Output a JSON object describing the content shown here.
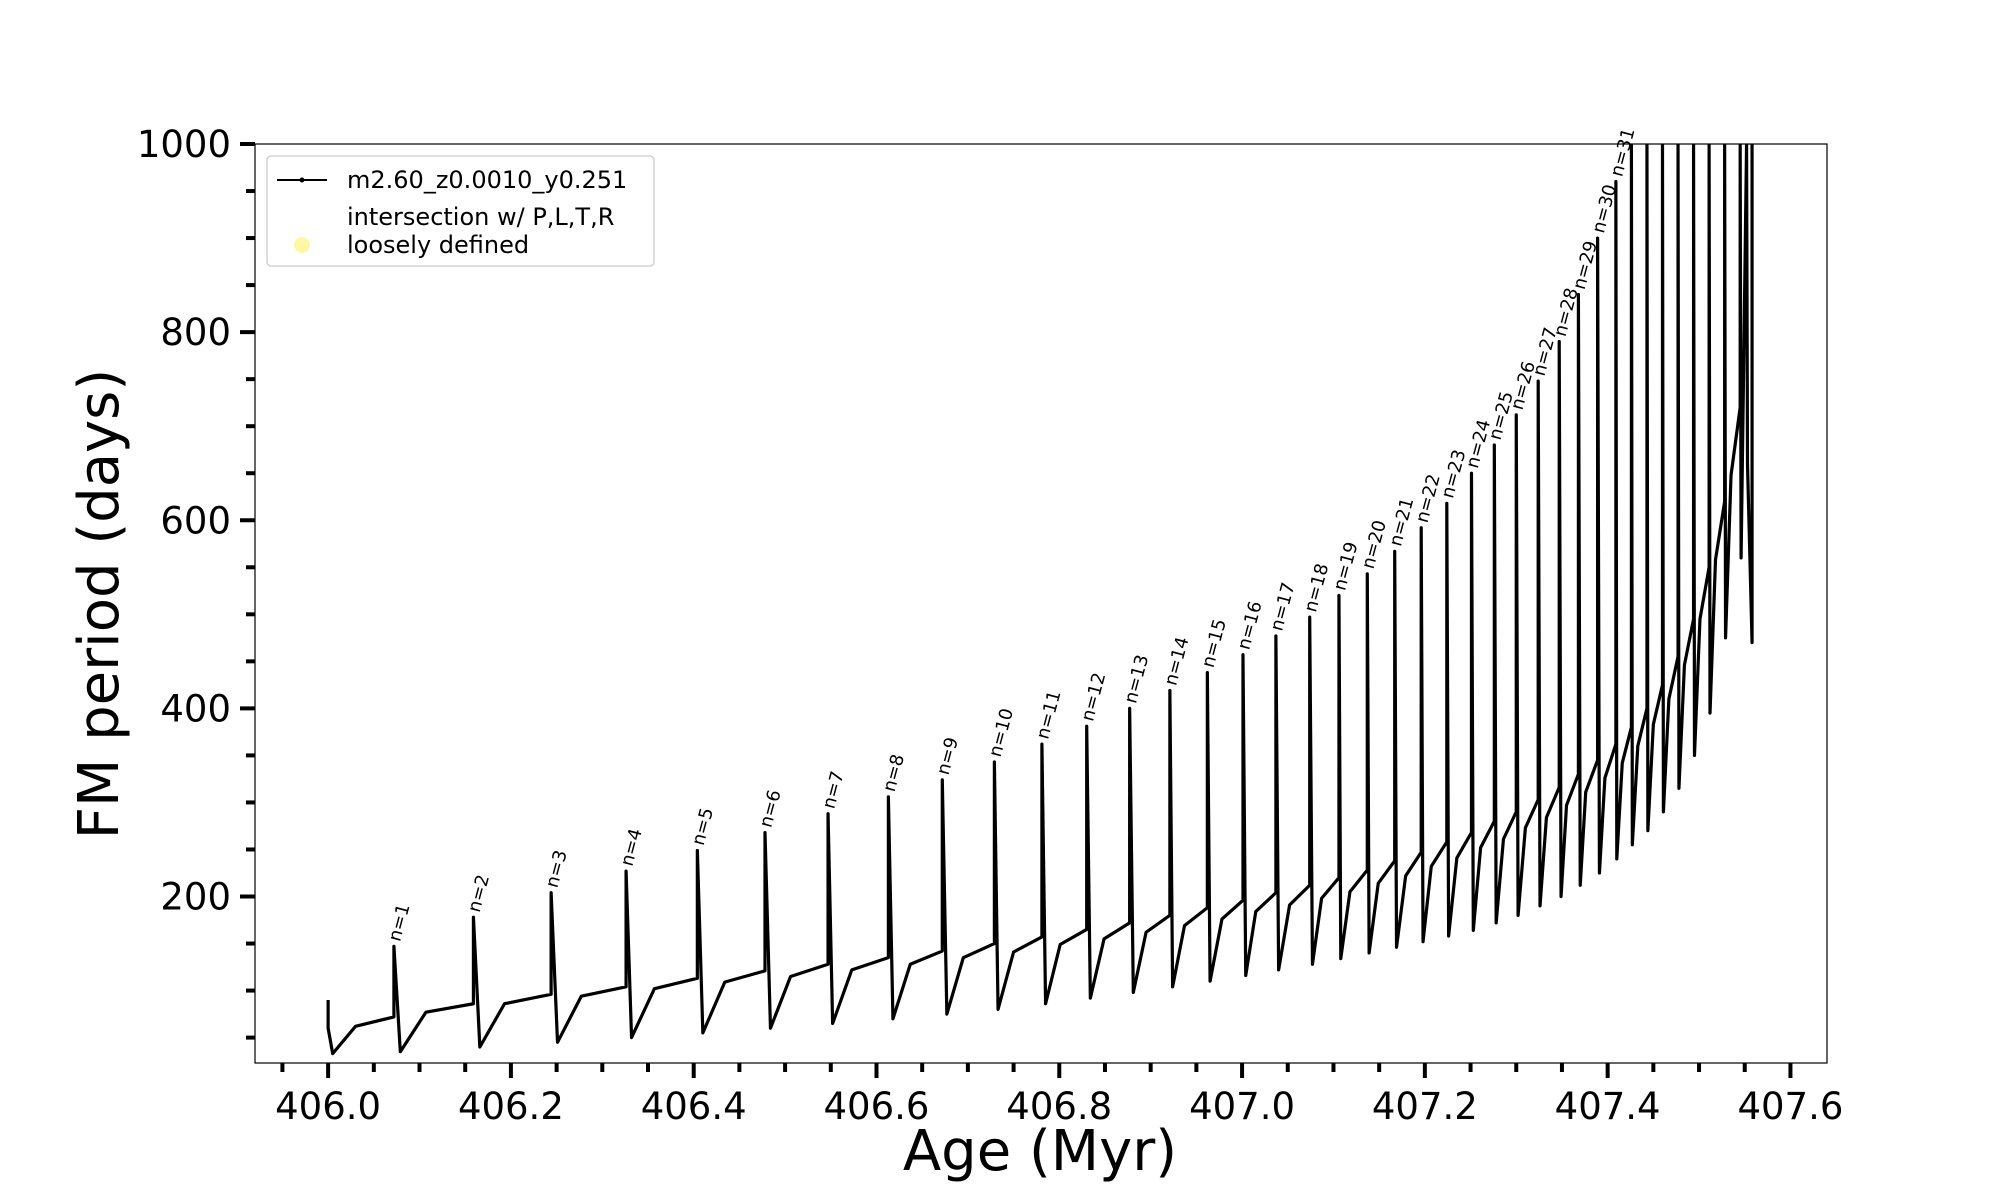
{
  "chart_data": {
    "type": "line",
    "xlabel": "Age (Myr)",
    "ylabel": "FM period (days)",
    "xlim": [
      405.92,
      407.64
    ],
    "ylim": [
      23,
      1000
    ],
    "xticks": [
      {
        "value": 406,
        "label": "406.0"
      },
      406.2,
      406.4,
      406.6,
      406.8,
      {
        "value": 407,
        "label": "407.0"
      },
      407.2,
      407.4,
      407.6
    ],
    "xticks_minor": [
      405.95,
      406.05,
      406.1,
      406.15,
      406.25,
      406.3,
      406.35,
      406.45,
      406.5,
      406.55,
      406.65,
      406.7,
      406.75,
      406.85,
      406.9,
      406.95,
      407.05,
      407.1,
      407.15,
      407.25,
      407.3,
      407.35,
      407.45,
      407.5,
      407.55
    ],
    "yticks": [
      200,
      400,
      600,
      800,
      1000
    ],
    "yticks_minor": [
      50,
      100,
      150,
      250,
      300,
      350,
      450,
      500,
      550,
      650,
      700,
      750,
      850,
      900,
      950
    ],
    "legend": "upper left",
    "series": [
      {
        "name": "m2.60_z0.0010_y0.251",
        "color": "#000000",
        "x": [
          406.0,
          406.0,
          406.005,
          406.03,
          406.072,
          406.072,
          406.079,
          406.107,
          406.159,
          406.159,
          406.166,
          406.193,
          406.244,
          406.244,
          406.251,
          406.277,
          406.326,
          406.326,
          406.332,
          406.357,
          406.404,
          406.404,
          406.41,
          406.434,
          406.478,
          406.478,
          406.484,
          406.506,
          406.547,
          406.547,
          406.552,
          406.573,
          406.613,
          406.613,
          406.618,
          406.637,
          406.672,
          406.672,
          406.677,
          406.695,
          406.729,
          406.729,
          406.733,
          406.75,
          406.781,
          406.781,
          406.785,
          406.801,
          406.83,
          406.83,
          406.834,
          406.849,
          406.877,
          406.877,
          406.881,
          406.895,
          406.921,
          406.921,
          406.924,
          406.937,
          406.962,
          406.962,
          406.965,
          406.978,
          407.001,
          407.001,
          407.004,
          407.015,
          407.037,
          407.037,
          407.04,
          407.052,
          407.074,
          407.074,
          407.077,
          407.087,
          407.106,
          407.106,
          407.108,
          407.118,
          407.137,
          407.137,
          407.139,
          407.149,
          407.167,
          407.167,
          407.169,
          407.179,
          407.196,
          407.196,
          407.198,
          407.207,
          407.224,
          407.224,
          407.226,
          407.235,
          407.251,
          407.251,
          407.253,
          407.261,
          407.276,
          407.276,
          407.278,
          407.286,
          407.3,
          407.3,
          407.302,
          407.31,
          407.324,
          407.324,
          407.326,
          407.333,
          407.347,
          407.347,
          407.349,
          407.355,
          407.368,
          407.368,
          407.37,
          407.376,
          407.389,
          407.389,
          407.391,
          407.397,
          407.409,
          407.409,
          407.41,
          407.416,
          407.426,
          407.426,
          407.427,
          407.433,
          407.443,
          407.443,
          407.444,
          407.45,
          407.46,
          407.46,
          407.461,
          407.467,
          407.477,
          407.477,
          407.478,
          407.484,
          407.494,
          407.494,
          407.495,
          407.501,
          407.511,
          407.511,
          407.512,
          407.518,
          407.528,
          407.528,
          407.529,
          407.535,
          407.545,
          407.545,
          407.546,
          407.55,
          407.552,
          407.553,
          407.558,
          407.558
        ],
        "values": [
          90,
          60,
          33,
          62,
          72,
          147,
          35,
          77,
          86,
          178,
          40,
          86,
          96,
          204,
          45,
          94,
          104,
          227,
          50,
          102,
          113,
          249,
          55,
          109,
          121,
          268,
          60,
          115,
          128,
          288,
          65,
          122,
          135,
          306,
          70,
          128,
          142,
          324,
          75,
          135,
          150,
          343,
          80,
          141,
          157,
          362,
          86,
          149,
          165,
          381,
          92,
          155,
          172,
          400,
          98,
          162,
          180,
          419,
          104,
          169,
          188,
          438,
          110,
          176,
          196,
          457,
          116,
          184,
          204,
          477,
          122,
          191,
          212,
          497,
          128,
          198,
          220,
          520,
          134,
          205,
          228,
          543,
          140,
          214,
          238,
          567,
          146,
          222,
          247,
          592,
          152,
          232,
          258,
          618,
          158,
          241,
          268,
          650,
          164,
          252,
          280,
          680,
          172,
          261,
          290,
          712,
          180,
          273,
          303,
          748,
          190,
          284,
          316,
          790,
          200,
          297,
          330,
          840,
          212,
          311,
          345,
          900,
          225,
          326,
          362,
          960,
          240,
          342,
          380,
          1000,
          255,
          360,
          400,
          1000,
          270,
          383,
          425,
          1000,
          290,
          410,
          455,
          1000,
          315,
          446,
          495,
          1000,
          350,
          495,
          550,
          1000,
          395,
          558,
          620,
          1000,
          475,
          648,
          720,
          1000,
          560,
          850,
          1000,
          660,
          470,
          1000
        ]
      },
      {
        "name": "intersection w/ P,L,T,R\nloosely defined",
        "color": "#fdf7a6",
        "type": "scatter",
        "x": [],
        "values": []
      }
    ],
    "annotations": [
      {
        "text": "n=1",
        "x": 406.072,
        "y": 147
      },
      {
        "text": "n=2",
        "x": 406.159,
        "y": 178
      },
      {
        "text": "n=3",
        "x": 406.244,
        "y": 204
      },
      {
        "text": "n=4",
        "x": 406.326,
        "y": 227
      },
      {
        "text": "n=5",
        "x": 406.404,
        "y": 249
      },
      {
        "text": "n=6",
        "x": 406.478,
        "y": 268
      },
      {
        "text": "n=7",
        "x": 406.547,
        "y": 288
      },
      {
        "text": "n=8",
        "x": 406.613,
        "y": 306
      },
      {
        "text": "n=9",
        "x": 406.672,
        "y": 324
      },
      {
        "text": "n=10",
        "x": 406.729,
        "y": 343
      },
      {
        "text": "n=11",
        "x": 406.781,
        "y": 362
      },
      {
        "text": "n=12",
        "x": 406.83,
        "y": 381
      },
      {
        "text": "n=13",
        "x": 406.877,
        "y": 400
      },
      {
        "text": "n=14",
        "x": 406.921,
        "y": 419
      },
      {
        "text": "n=15",
        "x": 406.962,
        "y": 438
      },
      {
        "text": "n=16",
        "x": 407.001,
        "y": 457
      },
      {
        "text": "n=17",
        "x": 407.037,
        "y": 477
      },
      {
        "text": "n=18",
        "x": 407.074,
        "y": 497
      },
      {
        "text": "n=19",
        "x": 407.106,
        "y": 520
      },
      {
        "text": "n=20",
        "x": 407.137,
        "y": 543
      },
      {
        "text": "n=21",
        "x": 407.167,
        "y": 567
      },
      {
        "text": "n=22",
        "x": 407.196,
        "y": 592
      },
      {
        "text": "n=23",
        "x": 407.224,
        "y": 618
      },
      {
        "text": "n=24",
        "x": 407.251,
        "y": 650
      },
      {
        "text": "n=25",
        "x": 407.276,
        "y": 680
      },
      {
        "text": "n=26",
        "x": 407.3,
        "y": 712
      },
      {
        "text": "n=27",
        "x": 407.324,
        "y": 748
      },
      {
        "text": "n=28",
        "x": 407.347,
        "y": 790
      },
      {
        "text": "n=29",
        "x": 407.368,
        "y": 840
      },
      {
        "text": "n=30",
        "x": 407.389,
        "y": 900
      },
      {
        "text": "n=31",
        "x": 407.409,
        "y": 960
      }
    ]
  }
}
